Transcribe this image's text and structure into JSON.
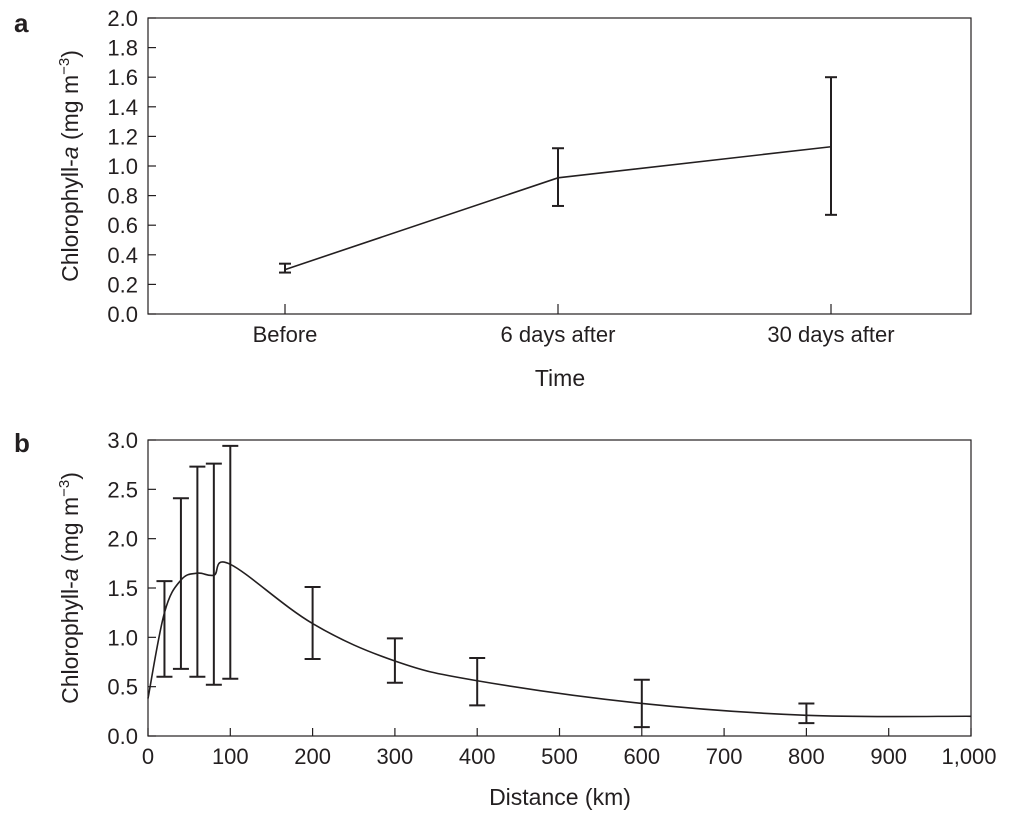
{
  "chart_data": [
    {
      "panel": "a",
      "type": "line",
      "categories": [
        "Before",
        "6 days after",
        "30 days after"
      ],
      "values": [
        0.3,
        0.92,
        1.13
      ],
      "error_low": [
        0.28,
        0.73,
        0.67
      ],
      "error_high": [
        0.34,
        1.12,
        1.6
      ],
      "xlabel": "Time",
      "ylabel_main": "Chlorophyll-",
      "ylabel_italic": "a",
      "ylabel_unit": " (mg m",
      "ylabel_exp": "−3",
      "ylabel_close": ")",
      "ylim": [
        0.0,
        2.0
      ],
      "yticks": [
        "0.0",
        "0.2",
        "0.4",
        "0.6",
        "0.8",
        "1.0",
        "1.2",
        "1.4",
        "1.6",
        "1.8",
        "2.0"
      ],
      "grid": false
    },
    {
      "panel": "b",
      "type": "line",
      "x": [
        0,
        20,
        40,
        60,
        80,
        100,
        200,
        300,
        400,
        600,
        800,
        1000
      ],
      "values": [
        0.38,
        1.25,
        1.58,
        1.65,
        1.63,
        1.74,
        1.14,
        0.76,
        0.56,
        0.33,
        0.21,
        0.2
      ],
      "errorbars": [
        {
          "x": 20,
          "low": 0.6,
          "high": 1.57
        },
        {
          "x": 40,
          "low": 0.68,
          "high": 2.41
        },
        {
          "x": 60,
          "low": 0.6,
          "high": 2.73
        },
        {
          "x": 80,
          "low": 0.52,
          "high": 2.76
        },
        {
          "x": 100,
          "low": 0.58,
          "high": 2.94
        },
        {
          "x": 200,
          "low": 0.78,
          "high": 1.51
        },
        {
          "x": 300,
          "low": 0.54,
          "high": 0.99
        },
        {
          "x": 400,
          "low": 0.31,
          "high": 0.79
        },
        {
          "x": 600,
          "low": 0.09,
          "high": 0.57
        },
        {
          "x": 800,
          "low": 0.13,
          "high": 0.33
        }
      ],
      "xlabel": "Distance (km)",
      "ylabel_main": "Chlorophyll-",
      "ylabel_italic": "a",
      "ylabel_unit": " (mg m",
      "ylabel_exp": "−3",
      "ylabel_close": ")",
      "xlim": [
        0,
        1000
      ],
      "ylim": [
        0.0,
        3.0
      ],
      "xticks": [
        "0",
        "100",
        "200",
        "300",
        "400",
        "500",
        "600",
        "700",
        "800",
        "900",
        "1,000"
      ],
      "xtick_values": [
        0,
        100,
        200,
        300,
        400,
        500,
        600,
        700,
        800,
        900,
        1000
      ],
      "yticks": [
        "0.0",
        "0.5",
        "1.0",
        "1.5",
        "2.0",
        "2.5",
        "3.0"
      ],
      "grid": false
    }
  ]
}
